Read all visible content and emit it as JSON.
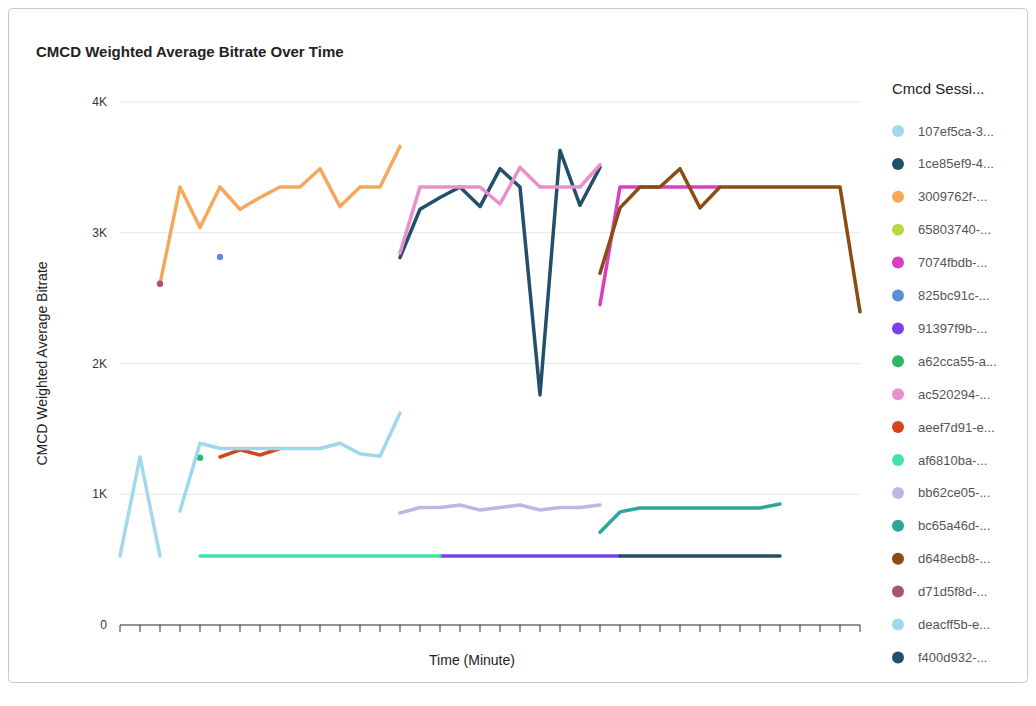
{
  "chart_data": {
    "type": "line",
    "title": "CMCD Weighted Average Bitrate Over Time",
    "x_label": "Time (Minute)",
    "y_label": "CMCD Weighted Average Bitrate",
    "legend_title": "Cmcd Sessi...",
    "x": [
      0,
      1,
      2,
      3,
      4,
      5,
      6,
      7,
      8,
      9,
      10,
      11,
      12,
      13,
      14,
      15,
      16,
      17,
      18,
      19,
      20,
      21,
      22,
      23,
      24,
      25,
      26,
      27,
      28,
      29,
      30,
      31,
      32,
      33,
      34,
      35,
      36,
      37
    ],
    "xlim": [
      0,
      37
    ],
    "xticks": [
      0,
      1,
      2,
      3,
      4,
      5,
      6,
      7,
      8,
      9,
      10,
      11,
      12,
      13,
      14,
      15,
      16,
      17,
      18,
      19,
      20,
      21,
      22,
      23,
      24,
      25,
      26,
      27,
      28,
      29,
      30,
      31,
      32,
      33,
      34,
      35,
      36,
      37
    ],
    "ylim": [
      0,
      4000
    ],
    "yticks": [
      0,
      {
        "value": 1000,
        "label": "1K"
      },
      {
        "value": 2000,
        "label": "2K"
      },
      {
        "value": 3000,
        "label": "3K"
      },
      {
        "value": 4000,
        "label": "4K"
      }
    ],
    "grid": true,
    "legend": "right",
    "tick_labels": "y",
    "series": [
      {
        "name": "107ef5ca-3...",
        "color": "#a3d9ec",
        "values": [
          528,
          1285,
          528,
          null,
          null,
          null,
          null,
          null,
          null,
          null,
          null,
          null,
          null,
          null,
          null,
          null,
          null,
          null,
          null,
          null,
          null,
          null,
          null,
          null,
          null,
          null,
          null,
          null,
          null,
          null,
          null,
          null,
          null,
          null,
          null,
          null,
          null,
          null
        ]
      },
      {
        "name": "1ce85ef9-4...",
        "color": "#22506b",
        "values": [
          null,
          null,
          null,
          null,
          null,
          null,
          null,
          null,
          null,
          null,
          null,
          null,
          null,
          null,
          2810,
          3180,
          3270,
          3350,
          3200,
          3490,
          3350,
          1760,
          3630,
          3210,
          3500,
          null,
          null,
          null,
          null,
          null,
          null,
          null,
          null,
          null,
          null,
          null,
          null,
          null
        ]
      },
      {
        "name": "3009762f-...",
        "color": "#f5a85b",
        "values": [
          null,
          null,
          2610,
          3350,
          3040,
          3350,
          3180,
          3270,
          3350,
          3350,
          3490,
          3200,
          3350,
          3350,
          3660,
          null,
          null,
          null,
          null,
          null,
          null,
          null,
          null,
          null,
          null,
          null,
          null,
          null,
          null,
          null,
          null,
          null,
          null,
          null,
          null,
          null,
          null,
          null
        ]
      },
      {
        "name": "65803740-...",
        "color": "#b8d843",
        "values": [
          null,
          null,
          null,
          null,
          null,
          null,
          null,
          null,
          null,
          null,
          null,
          null,
          null,
          null,
          null,
          null,
          null,
          null,
          null,
          null,
          null,
          null,
          null,
          null,
          null,
          null,
          null,
          null,
          null,
          null,
          null,
          null,
          null,
          null,
          null,
          null,
          null,
          null
        ]
      },
      {
        "name": "7074fbdb-...",
        "color": "#d93fc0",
        "values": [
          null,
          null,
          null,
          null,
          null,
          null,
          null,
          null,
          null,
          null,
          null,
          null,
          null,
          null,
          null,
          null,
          null,
          null,
          null,
          null,
          null,
          null,
          null,
          null,
          2450,
          3350,
          3350,
          3350,
          3350,
          3350,
          3350,
          null,
          null,
          null,
          null,
          null,
          null,
          null
        ]
      },
      {
        "name": "825bc91c-...",
        "color": "#5a8fdb",
        "values": [
          null,
          null,
          null,
          null,
          null,
          2815,
          null,
          null,
          null,
          null,
          null,
          null,
          null,
          null,
          null,
          null,
          null,
          null,
          null,
          null,
          null,
          null,
          null,
          null,
          null,
          null,
          null,
          null,
          null,
          null,
          null,
          null,
          null,
          null,
          null,
          null,
          null,
          null
        ]
      },
      {
        "name": "91397f9b-...",
        "color": "#7a41e6",
        "values": [
          null,
          null,
          null,
          null,
          null,
          null,
          null,
          null,
          null,
          null,
          null,
          null,
          null,
          null,
          null,
          null,
          528,
          528,
          528,
          528,
          528,
          528,
          528,
          528,
          528,
          528,
          null,
          null,
          null,
          null,
          null,
          null,
          null,
          null,
          null,
          null,
          null,
          null
        ]
      },
      {
        "name": "a62cca55-a...",
        "color": "#2eb866",
        "values": [
          null,
          null,
          null,
          null,
          1280,
          null,
          null,
          null,
          null,
          null,
          null,
          null,
          null,
          null,
          null,
          null,
          null,
          null,
          null,
          null,
          null,
          null,
          null,
          null,
          null,
          null,
          null,
          null,
          null,
          null,
          null,
          null,
          null,
          null,
          null,
          null,
          null,
          null
        ]
      },
      {
        "name": "ac520294-...",
        "color": "#ea8fcb",
        "values": [
          null,
          null,
          null,
          null,
          null,
          null,
          null,
          null,
          null,
          null,
          null,
          null,
          null,
          null,
          2845,
          3350,
          3350,
          3350,
          3350,
          3220,
          3500,
          3350,
          3350,
          3350,
          3520,
          null,
          null,
          null,
          null,
          null,
          null,
          null,
          null,
          null,
          null,
          null,
          null,
          null
        ]
      },
      {
        "name": "aeef7d91-e...",
        "color": "#d6451a",
        "values": [
          null,
          null,
          null,
          null,
          null,
          1285,
          1340,
          1300,
          1350,
          null,
          null,
          null,
          null,
          null,
          null,
          null,
          null,
          null,
          null,
          null,
          null,
          null,
          null,
          null,
          null,
          null,
          null,
          null,
          null,
          null,
          null,
          null,
          null,
          null,
          null,
          null,
          null,
          null
        ]
      },
      {
        "name": "af6810ba-...",
        "color": "#43e2a6",
        "values": [
          null,
          null,
          null,
          null,
          528,
          528,
          528,
          528,
          528,
          528,
          528,
          528,
          528,
          528,
          528,
          528,
          528,
          null,
          null,
          null,
          null,
          null,
          null,
          null,
          null,
          null,
          null,
          null,
          null,
          null,
          null,
          null,
          null,
          null,
          null,
          null,
          null,
          null
        ]
      },
      {
        "name": "bb62ce05-...",
        "color": "#bbb8e2",
        "values": [
          null,
          null,
          null,
          null,
          null,
          null,
          null,
          null,
          null,
          null,
          null,
          null,
          null,
          null,
          857,
          899,
          899,
          918,
          880,
          899,
          918,
          880,
          899,
          899,
          918,
          null,
          null,
          null,
          null,
          null,
          null,
          null,
          null,
          null,
          null,
          null,
          null,
          null
        ]
      },
      {
        "name": "bc65a46d-...",
        "color": "#2ea59c",
        "values": [
          null,
          null,
          null,
          null,
          null,
          null,
          null,
          null,
          null,
          null,
          null,
          null,
          null,
          null,
          null,
          null,
          null,
          null,
          null,
          null,
          null,
          null,
          null,
          null,
          710,
          865,
          895,
          895,
          895,
          895,
          895,
          895,
          895,
          925,
          null,
          null,
          null,
          null
        ]
      },
      {
        "name": "d648ecb8-...",
        "color": "#8b4c14",
        "values": [
          null,
          null,
          null,
          null,
          null,
          null,
          null,
          null,
          null,
          null,
          null,
          null,
          null,
          null,
          null,
          null,
          null,
          null,
          null,
          null,
          null,
          null,
          null,
          null,
          2690,
          3190,
          3350,
          3350,
          3490,
          3190,
          3350,
          3350,
          3350,
          3350,
          3350,
          3350,
          3350,
          2395
        ]
      },
      {
        "name": "d71d5f8d-...",
        "color": "#a8536f",
        "values": [
          null,
          null,
          2610,
          null,
          null,
          null,
          null,
          null,
          null,
          null,
          null,
          null,
          null,
          null,
          null,
          null,
          null,
          null,
          null,
          null,
          null,
          null,
          null,
          null,
          null,
          null,
          null,
          null,
          null,
          null,
          null,
          null,
          null,
          null,
          null,
          null,
          null,
          null
        ]
      },
      {
        "name": "deacff5b-e...",
        "color": "#9fd7ec",
        "values": [
          null,
          null,
          null,
          872,
          1390,
          1350,
          1350,
          1350,
          1350,
          1350,
          1350,
          1390,
          1310,
          1290,
          1620,
          null,
          null,
          null,
          null,
          null,
          null,
          null,
          null,
          null,
          null,
          null,
          null,
          null,
          null,
          null,
          null,
          null,
          null,
          null,
          null,
          null,
          null,
          null
        ]
      },
      {
        "name": "f400d932-...",
        "color": "#234f68",
        "values": [
          null,
          null,
          null,
          null,
          null,
          null,
          null,
          null,
          null,
          null,
          null,
          null,
          null,
          null,
          null,
          null,
          null,
          null,
          null,
          null,
          null,
          null,
          null,
          null,
          null,
          528,
          528,
          528,
          528,
          528,
          528,
          528,
          528,
          528,
          null,
          null,
          null,
          null
        ]
      }
    ]
  }
}
